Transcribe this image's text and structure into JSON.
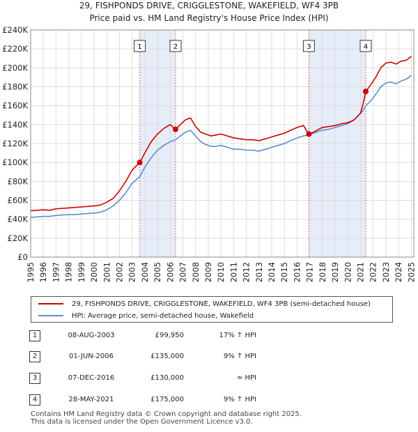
{
  "chart_data": {
    "type": "line",
    "title": "29, FISHPONDS DRIVE, CRIGGLESTONE, WAKEFIELD, WF4 3PB",
    "subtitle": "Price paid vs. HM Land Registry's House Price Index (HPI)",
    "xlim": [
      1995,
      2025.2
    ],
    "ylim": [
      0,
      240000
    ],
    "x_ticks": [
      1995,
      1996,
      1997,
      1998,
      1999,
      2000,
      2001,
      2002,
      2003,
      2004,
      2005,
      2006,
      2007,
      2008,
      2009,
      2010,
      2011,
      2012,
      2013,
      2014,
      2015,
      2016,
      2017,
      2018,
      2019,
      2020,
      2021,
      2022,
      2023,
      2024,
      2025
    ],
    "y_ticks": [
      0,
      20000,
      40000,
      60000,
      80000,
      100000,
      120000,
      140000,
      160000,
      180000,
      200000,
      220000,
      240000
    ],
    "y_tick_labels": [
      "£0",
      "£20K",
      "£40K",
      "£60K",
      "£80K",
      "£100K",
      "£120K",
      "£140K",
      "£160K",
      "£180K",
      "£200K",
      "£220K",
      "£240K"
    ],
    "colors": {
      "property": "#cc0000",
      "hpi": "#5b8ec9",
      "shade": "#dde6f5",
      "marker_line": "#e06666",
      "grid": "#dddddd"
    },
    "series": [
      {
        "name": "29, FISHPONDS DRIVE, CRIGGLESTONE, WAKEFIELD, WF4 3PB (semi-detached house)",
        "color": "#cc0000",
        "x": [
          1995.0,
          1995.5,
          1996.0,
          1996.5,
          1997.0,
          1997.5,
          1998.0,
          1998.5,
          1999.0,
          1999.5,
          2000.0,
          2000.5,
          2001.0,
          2001.5,
          2002.0,
          2002.5,
          2003.0,
          2003.6,
          2004.0,
          2004.5,
          2005.0,
          2005.5,
          2006.0,
          2006.42,
          2006.8,
          2007.2,
          2007.6,
          2008.0,
          2008.4,
          2008.8,
          2009.2,
          2009.6,
          2010.0,
          2010.5,
          2011.0,
          2011.5,
          2012.0,
          2012.5,
          2013.0,
          2013.5,
          2014.0,
          2014.5,
          2015.0,
          2015.5,
          2016.0,
          2016.5,
          2016.93,
          2017.3,
          2017.7,
          2018.0,
          2018.5,
          2019.0,
          2019.5,
          2020.0,
          2020.5,
          2021.0,
          2021.2,
          2021.41,
          2021.8,
          2022.2,
          2022.6,
          2023.0,
          2023.4,
          2023.8,
          2024.2,
          2024.6,
          2025.0
        ],
        "values": [
          49000,
          49500,
          50000,
          49500,
          51000,
          51500,
          52000,
          52500,
          53000,
          53500,
          54000,
          55000,
          58000,
          62000,
          70000,
          80000,
          92000,
          99950,
          110000,
          122000,
          130000,
          136000,
          140000,
          135000,
          140000,
          145000,
          147000,
          138000,
          132000,
          130000,
          128000,
          129000,
          130000,
          128000,
          126000,
          125000,
          124000,
          124000,
          123000,
          125000,
          127000,
          129000,
          131000,
          134000,
          137000,
          139000,
          130000,
          132000,
          135000,
          137000,
          138000,
          139000,
          141000,
          142000,
          145000,
          152000,
          162000,
          175000,
          182000,
          190000,
          200000,
          205000,
          206000,
          204000,
          207000,
          208000,
          212000
        ]
      },
      {
        "name": "HPI: Average price, semi-detached house, Wakefield",
        "color": "#5b8ec9",
        "x": [
          1995.0,
          1995.5,
          1996.0,
          1996.5,
          1997.0,
          1997.5,
          1998.0,
          1998.5,
          1999.0,
          1999.5,
          2000.0,
          2000.5,
          2001.0,
          2001.5,
          2002.0,
          2002.5,
          2003.0,
          2003.6,
          2004.0,
          2004.5,
          2005.0,
          2005.5,
          2006.0,
          2006.42,
          2006.8,
          2007.2,
          2007.6,
          2008.0,
          2008.4,
          2008.8,
          2009.2,
          2009.6,
          2010.0,
          2010.5,
          2011.0,
          2011.5,
          2012.0,
          2012.5,
          2013.0,
          2013.5,
          2014.0,
          2014.5,
          2015.0,
          2015.5,
          2016.0,
          2016.5,
          2016.93,
          2017.3,
          2017.7,
          2018.0,
          2018.5,
          2019.0,
          2019.5,
          2020.0,
          2020.5,
          2021.0,
          2021.2,
          2021.41,
          2021.8,
          2022.2,
          2022.6,
          2023.0,
          2023.4,
          2023.8,
          2024.2,
          2024.6,
          2025.0
        ],
        "values": [
          42000,
          42500,
          43000,
          43000,
          44000,
          44500,
          45000,
          45000,
          45500,
          46000,
          46500,
          47500,
          50000,
          54000,
          60000,
          68000,
          78000,
          85000,
          95000,
          105000,
          113000,
          118000,
          122000,
          124000,
          128000,
          132000,
          134000,
          128000,
          122000,
          119000,
          117000,
          117000,
          118000,
          116000,
          114000,
          114000,
          113000,
          113000,
          112000,
          114000,
          116000,
          118000,
          120000,
          123000,
          126000,
          128000,
          129000,
          131000,
          133000,
          134000,
          135000,
          137000,
          139000,
          141000,
          145000,
          152000,
          155000,
          160000,
          165000,
          172000,
          180000,
          184000,
          185000,
          183000,
          186000,
          188000,
          192000
        ]
      }
    ],
    "transactions": [
      {
        "num": "1",
        "year": 2003.6,
        "price": 99950,
        "date": "08-AUG-2003",
        "price_label": "£99,950",
        "hpi_label": "17% ↑ HPI"
      },
      {
        "num": "2",
        "year": 2006.42,
        "price": 135000,
        "date": "01-JUN-2006",
        "price_label": "£135,000",
        "hpi_label": "9% ↑ HPI"
      },
      {
        "num": "3",
        "year": 2016.93,
        "price": 130000,
        "date": "07-DEC-2016",
        "price_label": "£130,000",
        "hpi_label": "≈ HPI"
      },
      {
        "num": "4",
        "year": 2021.41,
        "price": 175000,
        "date": "28-MAY-2021",
        "price_label": "£175,000",
        "hpi_label": "9% ↑ HPI"
      }
    ],
    "shaded_ranges": [
      [
        2003.6,
        2006.42
      ],
      [
        2016.93,
        2021.41
      ]
    ]
  },
  "legend": {
    "property_label": "29, FISHPONDS DRIVE, CRIGGLESTONE, WAKEFIELD, WF4 3PB (semi-detached house)",
    "hpi_label": "HPI: Average price, semi-detached house, Wakefield"
  },
  "footer": {
    "line1": "Contains HM Land Registry data © Crown copyright and database right 2025.",
    "line2": "This data is licensed under the Open Government Licence v3.0."
  }
}
